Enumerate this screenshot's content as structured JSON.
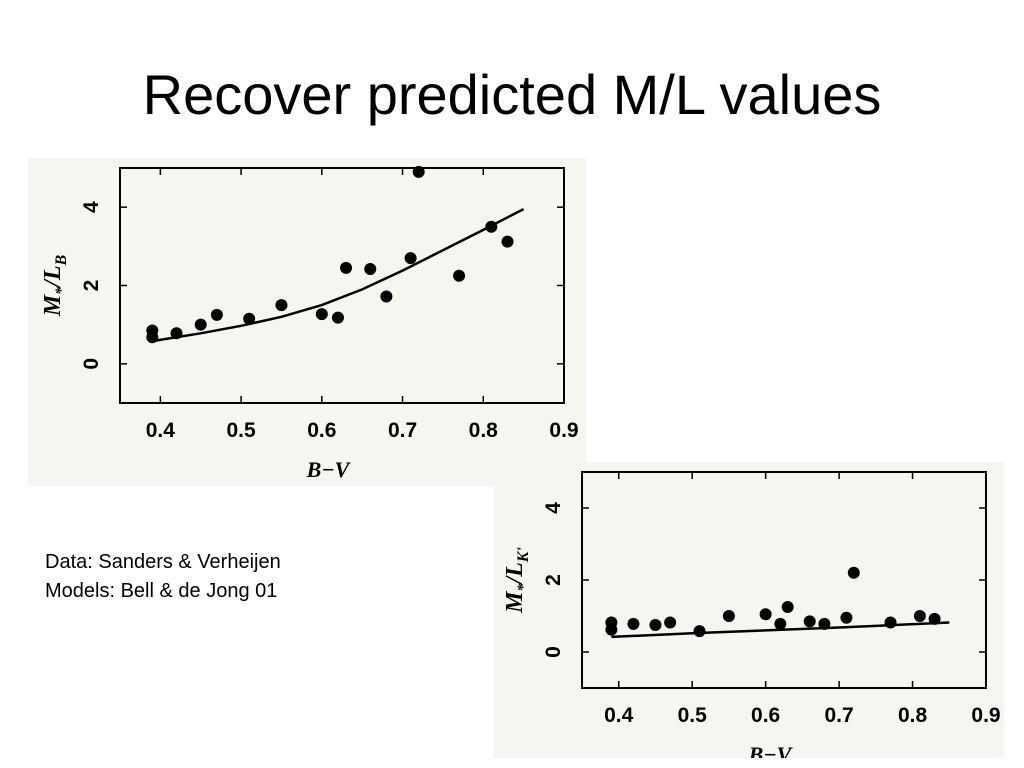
{
  "slide": {
    "title": "Recover predicted M/L values"
  },
  "credits": {
    "data_line": "Data: Sanders & Verheijen",
    "models_line": "Models: Bell & de Jong 01"
  },
  "colors": {
    "background": "#ffffff",
    "figure_background": "#f4f6f2",
    "ink": "#000000"
  },
  "chart_data": [
    {
      "type": "scatter",
      "id": "ml-b",
      "xlabel": "B−V",
      "ylabel_main": "M",
      "ylabel_star": "*",
      "ylabel_band": "B",
      "xlim": [
        0.35,
        0.9
      ],
      "ylim": [
        -1,
        5
      ],
      "xticks": [
        0.4,
        0.5,
        0.6,
        0.7,
        0.8,
        0.9
      ],
      "xtick_labels": [
        "0.4",
        "0.5",
        "0.6",
        "0.7",
        "0.8",
        "0.9"
      ],
      "yticks": [
        0,
        2,
        4
      ],
      "ytick_labels": [
        "0",
        "2",
        "4"
      ],
      "grid": false,
      "points": [
        {
          "x": 0.39,
          "y": 0.85
        },
        {
          "x": 0.39,
          "y": 0.68
        },
        {
          "x": 0.42,
          "y": 0.78
        },
        {
          "x": 0.45,
          "y": 1.0
        },
        {
          "x": 0.47,
          "y": 1.25
        },
        {
          "x": 0.51,
          "y": 1.15
        },
        {
          "x": 0.55,
          "y": 1.5
        },
        {
          "x": 0.6,
          "y": 1.27
        },
        {
          "x": 0.62,
          "y": 1.18
        },
        {
          "x": 0.63,
          "y": 2.45
        },
        {
          "x": 0.66,
          "y": 2.42
        },
        {
          "x": 0.68,
          "y": 1.72
        },
        {
          "x": 0.71,
          "y": 2.7
        },
        {
          "x": 0.72,
          "y": 4.9
        },
        {
          "x": 0.77,
          "y": 2.25
        },
        {
          "x": 0.81,
          "y": 3.5
        },
        {
          "x": 0.83,
          "y": 3.12
        }
      ],
      "model_curve": [
        {
          "x": 0.39,
          "y": 0.58
        },
        {
          "x": 0.45,
          "y": 0.78
        },
        {
          "x": 0.5,
          "y": 0.97
        },
        {
          "x": 0.55,
          "y": 1.2
        },
        {
          "x": 0.6,
          "y": 1.5
        },
        {
          "x": 0.65,
          "y": 1.9
        },
        {
          "x": 0.7,
          "y": 2.38
        },
        {
          "x": 0.75,
          "y": 2.9
        },
        {
          "x": 0.8,
          "y": 3.42
        },
        {
          "x": 0.85,
          "y": 3.95
        }
      ]
    },
    {
      "type": "scatter",
      "id": "ml-k",
      "xlabel": "B−V",
      "ylabel_main": "M",
      "ylabel_star": "*",
      "ylabel_band": "K'",
      "xlim": [
        0.35,
        0.9
      ],
      "ylim": [
        -1,
        5
      ],
      "xticks": [
        0.4,
        0.5,
        0.6,
        0.7,
        0.8,
        0.9
      ],
      "xtick_labels": [
        "0.4",
        "0.5",
        "0.6",
        "0.7",
        "0.8",
        "0.9"
      ],
      "yticks": [
        0,
        2,
        4
      ],
      "ytick_labels": [
        "0",
        "2",
        "4"
      ],
      "grid": false,
      "points": [
        {
          "x": 0.39,
          "y": 0.82
        },
        {
          "x": 0.39,
          "y": 0.62
        },
        {
          "x": 0.42,
          "y": 0.78
        },
        {
          "x": 0.45,
          "y": 0.75
        },
        {
          "x": 0.47,
          "y": 0.82
        },
        {
          "x": 0.51,
          "y": 0.58
        },
        {
          "x": 0.55,
          "y": 1.0
        },
        {
          "x": 0.6,
          "y": 1.05
        },
        {
          "x": 0.62,
          "y": 0.78
        },
        {
          "x": 0.63,
          "y": 1.25
        },
        {
          "x": 0.66,
          "y": 0.85
        },
        {
          "x": 0.68,
          "y": 0.78
        },
        {
          "x": 0.71,
          "y": 0.95
        },
        {
          "x": 0.72,
          "y": 2.2
        },
        {
          "x": 0.77,
          "y": 0.82
        },
        {
          "x": 0.81,
          "y": 1.0
        },
        {
          "x": 0.83,
          "y": 0.92
        }
      ],
      "model_curve": [
        {
          "x": 0.39,
          "y": 0.42
        },
        {
          "x": 0.5,
          "y": 0.52
        },
        {
          "x": 0.6,
          "y": 0.6
        },
        {
          "x": 0.7,
          "y": 0.68
        },
        {
          "x": 0.85,
          "y": 0.82
        }
      ]
    }
  ]
}
